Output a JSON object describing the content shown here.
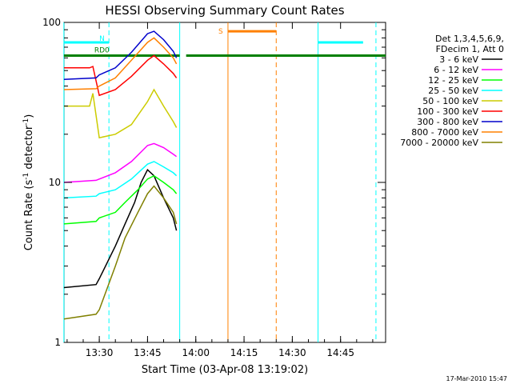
{
  "chart_data": {
    "type": "line",
    "title": "HESSI Observing Summary Count Rates",
    "xlabel": "Start Time (03-Apr-08 13:19:02)",
    "ylabel_main": "Count Rate (s",
    "ylabel_sup1": "-1",
    "ylabel_mid": " detector",
    "ylabel_sup2": "-1",
    "ylabel_end": ")",
    "y_scale": "log",
    "ylim": [
      1,
      100
    ],
    "xlim": [
      "13:19:02",
      "14:59:00"
    ],
    "grid": false,
    "x_ticks": [
      {
        "t": "13:30",
        "label": "13:30"
      },
      {
        "t": "13:45",
        "label": "13:45"
      },
      {
        "t": "14:00",
        "label": "14:00"
      },
      {
        "t": "14:15",
        "label": "14:15"
      },
      {
        "t": "14:30",
        "label": "14:30"
      },
      {
        "t": "14:45",
        "label": "14:45"
      }
    ],
    "y_ticks": [
      {
        "v": 1,
        "label": "1"
      },
      {
        "v": 10,
        "label": "10"
      },
      {
        "v": 100,
        "label": "100"
      }
    ],
    "legend": {
      "header1": "Det 1,3,4,5,6,9,",
      "header2": "FDecim 1, Att 0",
      "position": "right"
    },
    "series": [
      {
        "name": "3 - 6 keV",
        "color": "#000000",
        "x": [
          "13:19",
          "13:29",
          "13:30",
          "13:35",
          "13:38",
          "13:41",
          "13:43",
          "13:45",
          "13:47",
          "13:50",
          "13:53",
          "13:54"
        ],
        "y": [
          2.2,
          2.3,
          2.5,
          4.0,
          5.5,
          7.5,
          10.0,
          12.0,
          11.0,
          8.0,
          6.0,
          5.0
        ]
      },
      {
        "name": "6 - 12 keV",
        "color": "#ff00ff",
        "x": [
          "13:19",
          "13:29",
          "13:30",
          "13:35",
          "13:40",
          "13:45",
          "13:47",
          "13:50",
          "13:53",
          "13:54"
        ],
        "y": [
          10.0,
          10.3,
          10.5,
          11.5,
          13.5,
          17.0,
          17.5,
          16.5,
          15.0,
          14.5
        ]
      },
      {
        "name": "12 - 25 keV",
        "color": "#00ff00",
        "x": [
          "13:19",
          "13:29",
          "13:30",
          "13:35",
          "13:38",
          "13:42",
          "13:45",
          "13:47",
          "13:50",
          "13:53",
          "13:54"
        ],
        "y": [
          5.5,
          5.7,
          6.0,
          6.5,
          7.5,
          9.0,
          10.5,
          11.0,
          10.0,
          9.0,
          8.5
        ]
      },
      {
        "name": "25 - 50 keV",
        "color": "#00ffff",
        "x": [
          "13:19",
          "13:29",
          "13:30",
          "13:35",
          "13:40",
          "13:45",
          "13:47",
          "13:50",
          "13:53",
          "13:54"
        ],
        "y": [
          8.0,
          8.2,
          8.5,
          9.0,
          10.5,
          13.0,
          13.5,
          12.5,
          11.5,
          11.0
        ]
      },
      {
        "name": "50 - 100 keV",
        "color": "#cccc00",
        "x": [
          "13:19",
          "13:27",
          "13:28",
          "13:30",
          "13:35",
          "13:40",
          "13:45",
          "13:47",
          "13:50",
          "13:53",
          "13:54"
        ],
        "y": [
          30.0,
          30.0,
          36.0,
          19.0,
          20.0,
          23.0,
          32.0,
          38.0,
          30.0,
          24.0,
          22.0
        ]
      },
      {
        "name": "100 - 300 keV",
        "color": "#ff0000",
        "x": [
          "13:19",
          "13:27",
          "13:28",
          "13:30",
          "13:35",
          "13:40",
          "13:45",
          "13:47",
          "13:50",
          "13:53",
          "13:54"
        ],
        "y": [
          52.0,
          52.0,
          53.0,
          35.0,
          38.0,
          46.0,
          58.0,
          62.0,
          55.0,
          48.0,
          45.0
        ]
      },
      {
        "name": "300 - 800 keV",
        "color": "#0000cc",
        "x": [
          "13:19",
          "13:29",
          "13:30",
          "13:35",
          "13:40",
          "13:45",
          "13:47",
          "13:50",
          "13:53",
          "13:54"
        ],
        "y": [
          44.0,
          45.0,
          47.0,
          52.0,
          65.0,
          85.0,
          88.0,
          78.0,
          66.0,
          60.0
        ]
      },
      {
        "name": "800 - 7000 keV",
        "color": "#ff8000",
        "x": [
          "13:19",
          "13:29",
          "13:30",
          "13:35",
          "13:40",
          "13:45",
          "13:47",
          "13:50",
          "13:53",
          "13:54"
        ],
        "y": [
          38.0,
          38.5,
          40.0,
          45.0,
          58.0,
          75.0,
          80.0,
          70.0,
          60.0,
          55.0
        ]
      },
      {
        "name": "7000 - 20000 keV",
        "color": "#808000",
        "x": [
          "13:19",
          "13:29",
          "13:30",
          "13:35",
          "13:38",
          "13:42",
          "13:45",
          "13:47",
          "13:50",
          "13:53",
          "13:54"
        ],
        "y": [
          1.4,
          1.5,
          1.6,
          3.0,
          4.5,
          6.5,
          8.5,
          9.5,
          8.0,
          6.5,
          5.5
        ]
      }
    ],
    "annotations": {
      "night": {
        "label": "N",
        "color": "#00ffff",
        "intervals": [
          [
            "13:19",
            "13:33"
          ],
          [
            "14:38",
            "14:52"
          ]
        ]
      },
      "saa": {
        "label": "S",
        "color": "#ff8000",
        "intervals": [
          [
            "14:10",
            "14:25"
          ]
        ]
      },
      "rd0": {
        "label": "RD0",
        "color": "#008000",
        "intervals": [
          [
            "13:19",
            "13:55"
          ],
          [
            "13:57",
            "14:59"
          ]
        ]
      },
      "other_label": "RD0",
      "vlines_solid": [
        {
          "t": "13:19",
          "color": "#00ffff"
        },
        {
          "t": "13:55",
          "color": "#00ffff"
        },
        {
          "t": "14:10",
          "color": "#ff8000"
        },
        {
          "t": "14:38",
          "color": "#00ffff"
        }
      ],
      "vlines_dashed": [
        {
          "t": "13:33",
          "color": "#00ffff"
        },
        {
          "t": "14:25",
          "color": "#ff8000"
        },
        {
          "t": "14:56",
          "color": "#00ffff"
        }
      ]
    }
  },
  "footer": {
    "timestamp": "17-Mar-2010 15:47"
  }
}
